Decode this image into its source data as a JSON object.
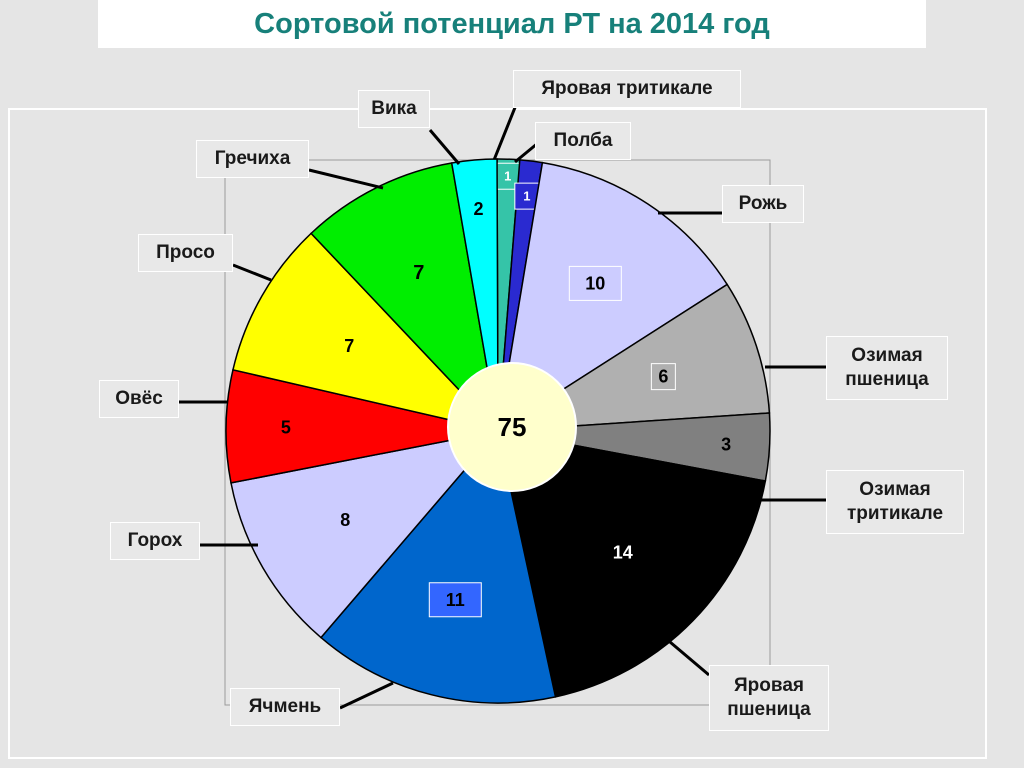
{
  "chart_data": {
    "type": "pie",
    "title": "Сортовой потенциал РТ на 2014 год",
    "total": "75",
    "slices": [
      {
        "name": "Яровая тритикале",
        "value": 1,
        "color": "#35c4a8",
        "label_text": "1"
      },
      {
        "name": "Полба",
        "value": 1,
        "color": "#2a2ad0",
        "label_text": "1"
      },
      {
        "name": "Рожь",
        "value": 10,
        "color": "#ccccff",
        "label_text": "10"
      },
      {
        "name": "Озимая\nпшеница",
        "value": 6,
        "color": "#b0b0b0",
        "label_text": "6"
      },
      {
        "name": "Озимая\nтритикале",
        "value": 3,
        "color": "#808080",
        "label_text": "3"
      },
      {
        "name": "Яровая\nпшеница",
        "value": 14,
        "color": "#000000",
        "label_text": "14"
      },
      {
        "name": "Ячмень",
        "value": 11,
        "color": "#0066cc",
        "label_text": "11"
      },
      {
        "name": "Горох",
        "value": 8,
        "color": "#ccccff",
        "label_text": "8"
      },
      {
        "name": "Овёс",
        "value": 5,
        "color": "#ff0000",
        "label_text": "5"
      },
      {
        "name": "Просо",
        "value": 7,
        "color": "#ffff00",
        "label_text": "7"
      },
      {
        "name": "Гречиха",
        "value": 7,
        "color": "#00ee00",
        "label_text": "7"
      },
      {
        "name": "Вика",
        "value": 2,
        "color": "#00ffff",
        "label_text": "2"
      }
    ]
  }
}
